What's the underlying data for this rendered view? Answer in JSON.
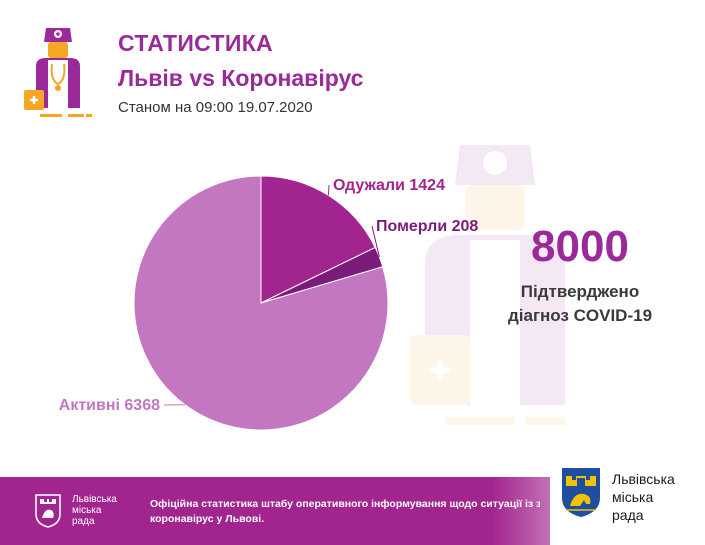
{
  "header": {
    "title": "СТАТИСТИКА",
    "subtitle": "Львів vs Коронавірус",
    "date_line": "Станом на 09:00 19.07.2020"
  },
  "confirmed": {
    "number": "8000",
    "line1": "Підтверджено",
    "line2": "діагноз COVID-19"
  },
  "chart_data": {
    "type": "pie",
    "slices": [
      {
        "label": "Одужали",
        "value": 1424,
        "color": "#a2248e"
      },
      {
        "label": "Померли",
        "value": 208,
        "color": "#7b1c7b"
      },
      {
        "label": "Активні",
        "value": 6368,
        "color": "#c477c1"
      }
    ]
  },
  "footer": {
    "council_small": [
      "Львівська",
      "міська",
      "рада"
    ],
    "text_line1": "Офіційна статистика штабу оперативного інформування щодо ситуації із зах",
    "text_line2": "коронавірус у Львові.",
    "logo_lines": [
      "Львівська",
      "міська",
      "рада"
    ]
  },
  "colors": {
    "accent": "#9a2a9a",
    "footer": "#a2248e",
    "emblem_blue": "#1f4e9e",
    "emblem_gold": "#f3c300",
    "icon_orange": "#f5a623"
  }
}
